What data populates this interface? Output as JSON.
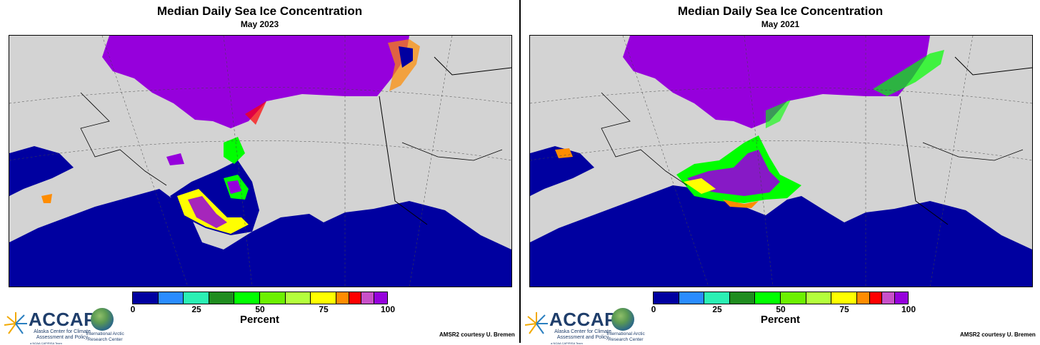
{
  "panels": [
    {
      "title": "Median Daily Sea Ice Concentration",
      "subtitle": "May 2023",
      "map_variant": "2023"
    },
    {
      "title": "Median Daily Sea Ice Concentration",
      "subtitle": "May 2021",
      "map_variant": "2021"
    }
  ],
  "colorbar": {
    "label": "Percent",
    "ticks": [
      "0",
      "25",
      "50",
      "75",
      "100"
    ],
    "colors": [
      "#0000a0",
      "#2a8cff",
      "#2bf0b4",
      "#1f8c1f",
      "#00ff00",
      "#6cf000",
      "#b4ff3c",
      "#ffff00",
      "#ff8c00",
      "#ff0000",
      "#c850c8",
      "#9600dc"
    ]
  },
  "colors": {
    "ocean": "#0000a0",
    "land": "#d3d3d3",
    "ice_full": "#9600dc"
  },
  "logos": {
    "accap_name": "ACCAP",
    "accap_tagline": "Alaska Center for Climate Assessment and Policy",
    "accap_affiliation": "a NOAA CAP/RISA Team",
    "iarc_name": "International Arctic Research Center"
  },
  "credit": "AMSR2 courtesy U. Bremen"
}
